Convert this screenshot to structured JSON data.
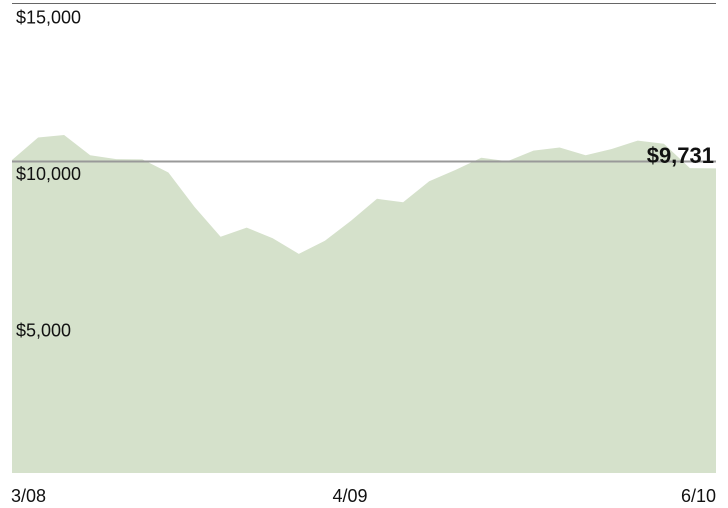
{
  "chart_data": {
    "type": "area",
    "title": "",
    "xlabel": "",
    "ylabel": "",
    "x_ticks": [
      "3/08",
      "4/09",
      "6/10"
    ],
    "y_ticks": [
      "$15,000",
      "$10,000",
      "$5,000"
    ],
    "y_tick_values": [
      15000,
      10000,
      5000
    ],
    "ylim": [
      0,
      15000
    ],
    "grid": false,
    "reference_line": 10000,
    "end_label": "$9,731",
    "colors": {
      "area": "#d5e1cb",
      "reference_line": "#999999",
      "top_rule": "#666666",
      "text": "#111111"
    },
    "series": [
      {
        "x": [
          "3/08",
          "4/08",
          "5/08",
          "6/08",
          "7/08",
          "8/08",
          "9/08",
          "10/08",
          "11/08",
          "12/08",
          "1/09",
          "2/09",
          "3/09",
          "4/09",
          "5/09",
          "6/09",
          "7/09",
          "8/09",
          "9/09",
          "10/09",
          "11/09",
          "12/09",
          "1/10",
          "2/10",
          "3/10",
          "4/10",
          "5/10",
          "6/10"
        ],
        "values": [
          10000,
          10720,
          10800,
          10150,
          10030,
          10020,
          9600,
          8500,
          7550,
          7840,
          7500,
          7000,
          7420,
          8060,
          8760,
          8650,
          9320,
          9680,
          10070,
          9960,
          10300,
          10400,
          10150,
          10350,
          10620,
          10520,
          9740,
          9731
        ]
      }
    ]
  }
}
